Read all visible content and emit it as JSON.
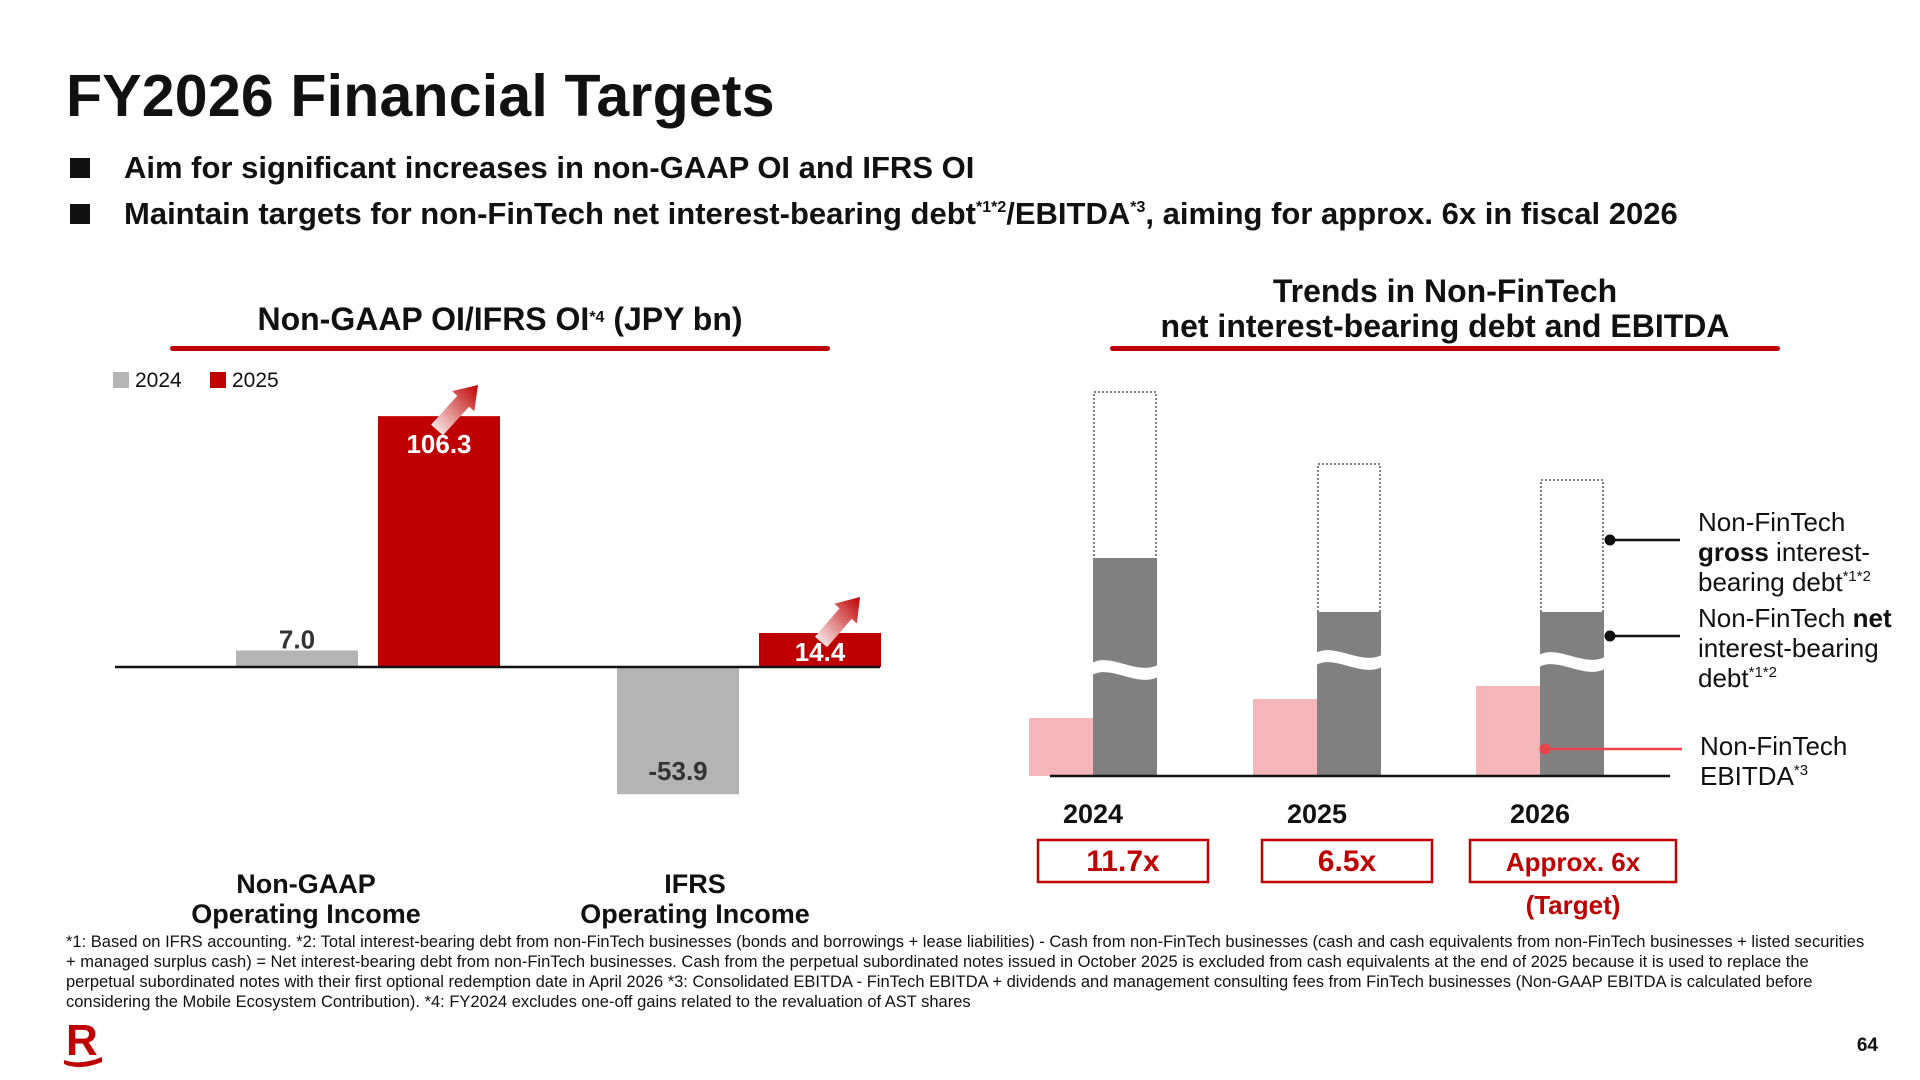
{
  "slide": {
    "title": "FY2026 Financial Targets",
    "bullets": [
      {
        "text": "Aim for significant increases in non-GAAP OI and IFRS OI"
      },
      {
        "pre": "Maintain targets for non-FinTech net interest-bearing debt",
        "sup1": "*1*2",
        "mid": "/EBITDA",
        "sup2": "*3",
        "post": ", aiming for approx. 6x in fiscal 2026"
      }
    ],
    "page_number": "64",
    "logo": "R",
    "footnote": "*1: Based on IFRS accounting. *2: Total interest-bearing debt from non-FinTech businesses (bonds and borrowings + lease liabilities) - Cash from non-FinTech businesses (cash and cash equivalents from non-FinTech businesses + listed securities + managed surplus cash) = Net interest-bearing debt from non-FinTech businesses. Cash from the perpetual subordinated notes issued in October 2025 is excluded from cash equivalents at the end of 2025 because it is used to replace the perpetual subordinated notes with their first optional redemption date in April 2026 *3: Consolidated EBITDA - FinTech EBITDA + dividends and management consulting fees from FinTech businesses (Non-GAAP EBITDA is calculated before considering the Mobile Ecosystem Contribution). *4: FY2024 excludes one-off gains related to the revaluation of AST shares"
  },
  "colors": {
    "accent_red": "#bf0000",
    "gray_2024": "#b4b4b4",
    "dark_gray": "#808080",
    "pink": "#f4b6b9",
    "marker_red": "#e8434b"
  },
  "chart_data": [
    {
      "type": "bar",
      "title": "Non-GAAP OI/IFRS OI",
      "title_sup": "*4",
      "title_unit": "(JPY bn)",
      "categories": [
        "Non-GAAP Operating Income",
        "IFRS Operating Income"
      ],
      "category_lines": [
        [
          "Non-GAAP",
          "Operating Income"
        ],
        [
          "IFRS",
          "Operating Income"
        ]
      ],
      "series": [
        {
          "name": "2024",
          "values": [
            7.0,
            -53.9
          ],
          "labels": [
            "7.0",
            "-53.9"
          ]
        },
        {
          "name": "2025",
          "values": [
            106.3,
            14.4
          ],
          "labels": [
            "106.3",
            "14.4"
          ]
        }
      ],
      "legend": "top-left",
      "annotations": [
        "upward-arrow-icon",
        "upward-arrow-icon"
      ]
    },
    {
      "type": "bar",
      "title_lines": [
        "Trends in Non-FinTech",
        "net interest-bearing debt and EBITDA"
      ],
      "categories": [
        "2024",
        "2025",
        "2026"
      ],
      "ratios": [
        "11.7x",
        "6.5x",
        "Approx. 6x"
      ],
      "target_note": "(Target)",
      "axis_break": true,
      "series": [
        {
          "name_parts": [
            {
              "t": "Non-FinTech",
              "b": false
            },
            {
              "t": "gross",
              "b": true,
              "nl": true
            },
            {
              "t": " interest-",
              "b": false
            },
            {
              "t": "bearing debt",
              "b": false,
              "nl": true
            },
            {
              "t": "*1*2",
              "sup": true
            }
          ],
          "relative_values": [
            1.0,
            0.82,
            0.78
          ],
          "style": "dotted-outline"
        },
        {
          "name_parts": [
            {
              "t": "Non-FinTech ",
              "b": false
            },
            {
              "t": "net",
              "b": true
            },
            {
              "t": "interest-bearing",
              "b": false,
              "nl": true
            },
            {
              "t": "debt",
              "b": false,
              "nl": true
            },
            {
              "t": "*1*2",
              "sup": true
            }
          ],
          "relative_values": [
            0.57,
            0.43,
            0.43
          ],
          "style": "dark-gray"
        },
        {
          "name_parts": [
            {
              "t": "Non-FinTech",
              "b": false
            },
            {
              "t": "EBITDA",
              "b": false,
              "nl": true
            },
            {
              "t": "*3",
              "sup": true
            }
          ],
          "relative_values": [
            0.15,
            0.2,
            0.23
          ],
          "style": "pink"
        }
      ],
      "legend": "right"
    }
  ]
}
